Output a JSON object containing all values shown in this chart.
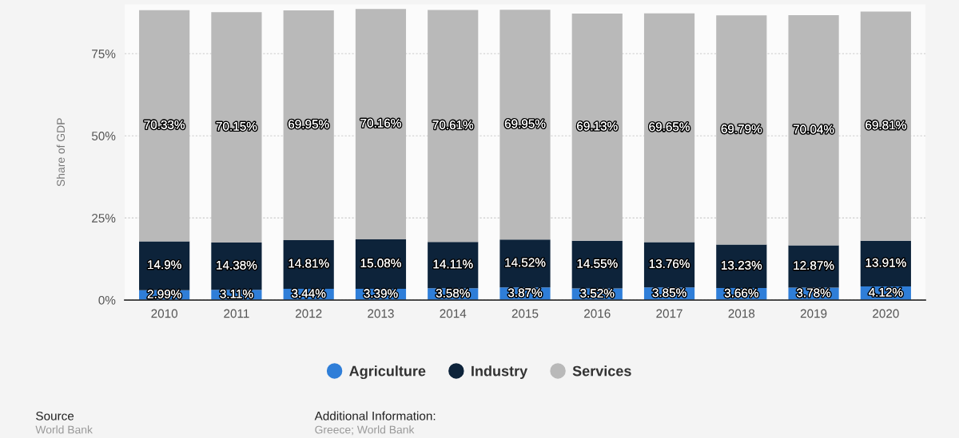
{
  "chart_data": {
    "type": "bar",
    "stacked": true,
    "ylabel": "Share of GDP",
    "categories": [
      "2010",
      "2011",
      "2012",
      "2013",
      "2014",
      "2015",
      "2016",
      "2017",
      "2018",
      "2019",
      "2020"
    ],
    "series": [
      {
        "name": "Agriculture",
        "color": "#2f7ed8",
        "values": [
          2.99,
          3.11,
          3.44,
          3.39,
          3.58,
          3.87,
          3.52,
          3.85,
          3.66,
          3.78,
          4.12
        ],
        "value_labels": [
          "2.99%",
          "3.11%",
          "3.44%",
          "3.39%",
          "3.58%",
          "3.87%",
          "3.52%",
          "3.85%",
          "3.66%",
          "3.78%",
          "4.12%"
        ]
      },
      {
        "name": "Industry",
        "color": "#0d233a",
        "values": [
          14.9,
          14.38,
          14.81,
          15.08,
          14.11,
          14.52,
          14.55,
          13.76,
          13.23,
          12.87,
          13.91
        ],
        "value_labels": [
          "14.9%",
          "14.38%",
          "14.81%",
          "15.08%",
          "14.11%",
          "14.52%",
          "14.55%",
          "13.76%",
          "13.23%",
          "12.87%",
          "13.91%"
        ]
      },
      {
        "name": "Services",
        "color": "#b9b9b9",
        "values": [
          70.33,
          70.15,
          69.95,
          70.16,
          70.61,
          69.95,
          69.13,
          69.65,
          69.79,
          70.04,
          69.81
        ],
        "value_labels": [
          "70.33%",
          "70.15%",
          "69.95%",
          "70.16%",
          "70.61%",
          "69.95%",
          "69.13%",
          "69.65%",
          "69.79%",
          "70.04%",
          "69.81%"
        ]
      }
    ],
    "ylim": [
      0,
      90
    ],
    "yticks": [
      {
        "value": 0,
        "label": "0%"
      },
      {
        "value": 25,
        "label": "25%"
      },
      {
        "value": 50,
        "label": "50%"
      },
      {
        "value": 75,
        "label": "75%"
      }
    ],
    "grid": "y",
    "legend": "bottom",
    "annotations": [
      "Source",
      "World Bank",
      "Additional Information:",
      "Greece; World Bank"
    ]
  }
}
